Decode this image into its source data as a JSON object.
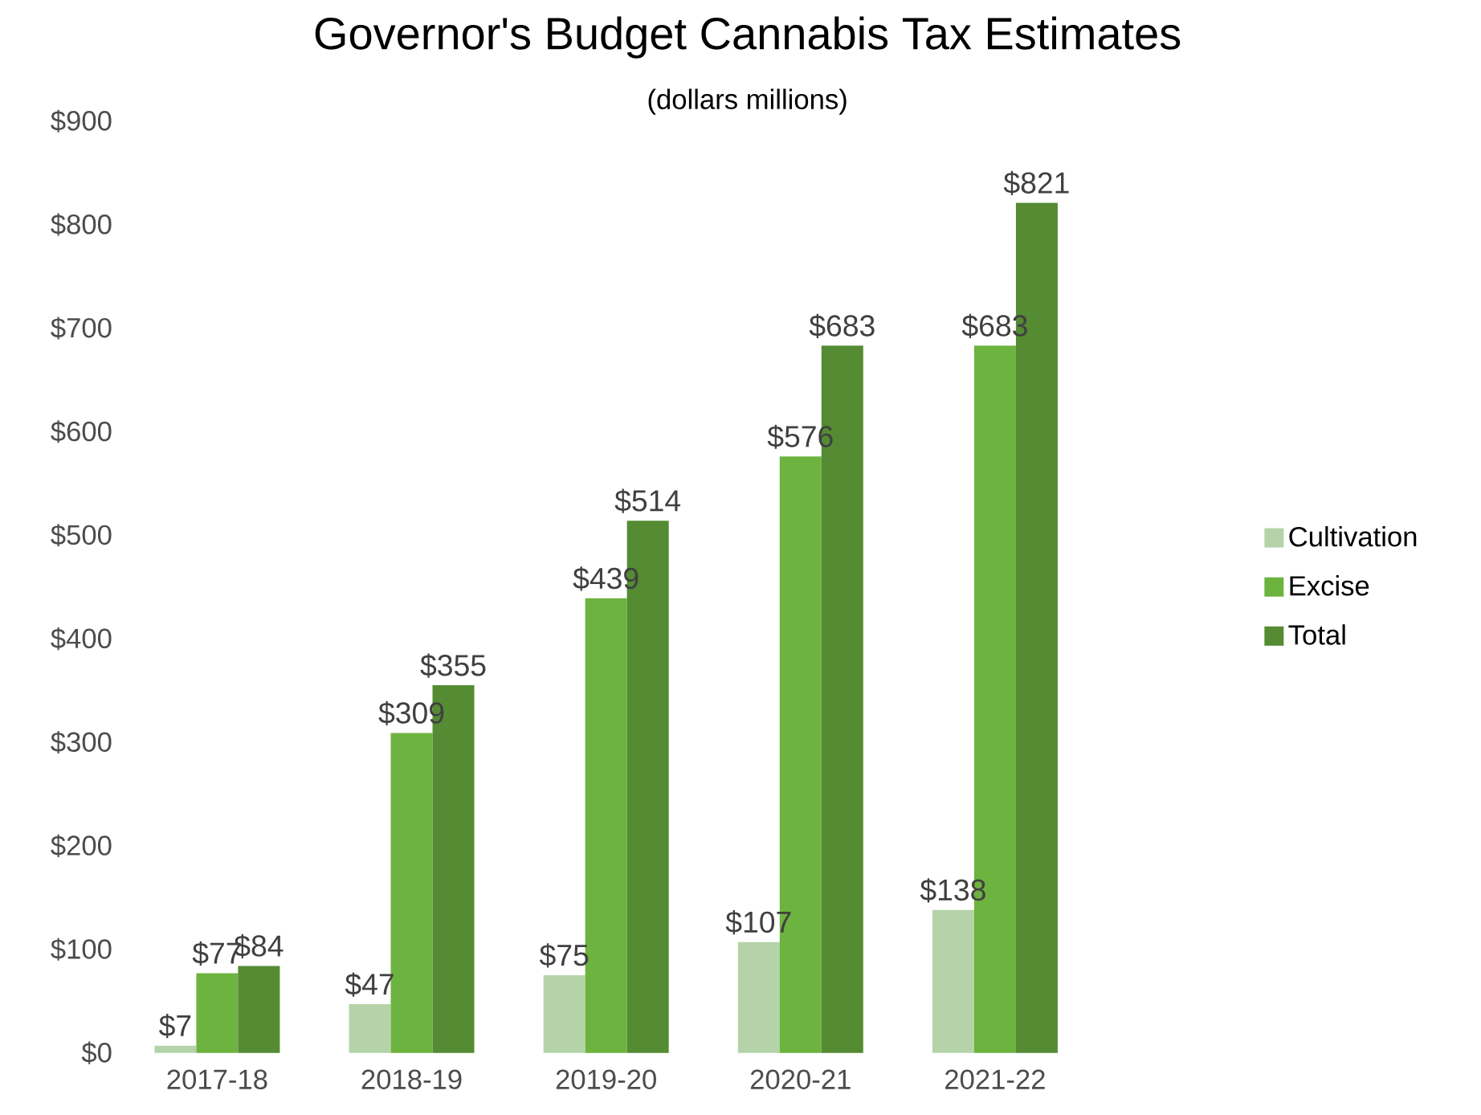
{
  "chart_data": {
    "type": "bar",
    "title": "Governor's Budget Cannabis Tax Estimates",
    "subtitle": "(dollars millions)",
    "categories": [
      "2017-18",
      "2018-19",
      "2019-20",
      "2020-21",
      "2021-22"
    ],
    "series": [
      {
        "name": "Cultivation",
        "color": "#b5d3a8",
        "values": [
          7,
          47,
          75,
          107,
          138
        ],
        "value_labels": [
          "$7",
          "$47",
          "$75",
          "$107",
          "$138"
        ]
      },
      {
        "name": "Excise",
        "color": "#6db33f",
        "values": [
          77,
          309,
          439,
          576,
          683
        ],
        "value_labels": [
          "$77",
          "$309",
          "$439",
          "$576",
          "$683"
        ]
      },
      {
        "name": "Total",
        "color": "#548b33",
        "values": [
          84,
          355,
          514,
          683,
          821
        ],
        "value_labels": [
          "$84",
          "$355",
          "$514",
          "$683",
          "$821"
        ]
      }
    ],
    "ylim": [
      0,
      900
    ],
    "yticks": [
      {
        "value": 0,
        "label": "$0"
      },
      {
        "value": 100,
        "label": "$100"
      },
      {
        "value": 200,
        "label": "$200"
      },
      {
        "value": 300,
        "label": "$300"
      },
      {
        "value": 400,
        "label": "$400"
      },
      {
        "value": 500,
        "label": "$500"
      },
      {
        "value": 600,
        "label": "$600"
      },
      {
        "value": 700,
        "label": "$700"
      },
      {
        "value": 800,
        "label": "$800"
      },
      {
        "value": 900,
        "label": "$900"
      }
    ],
    "grid": false,
    "legend": "right"
  }
}
